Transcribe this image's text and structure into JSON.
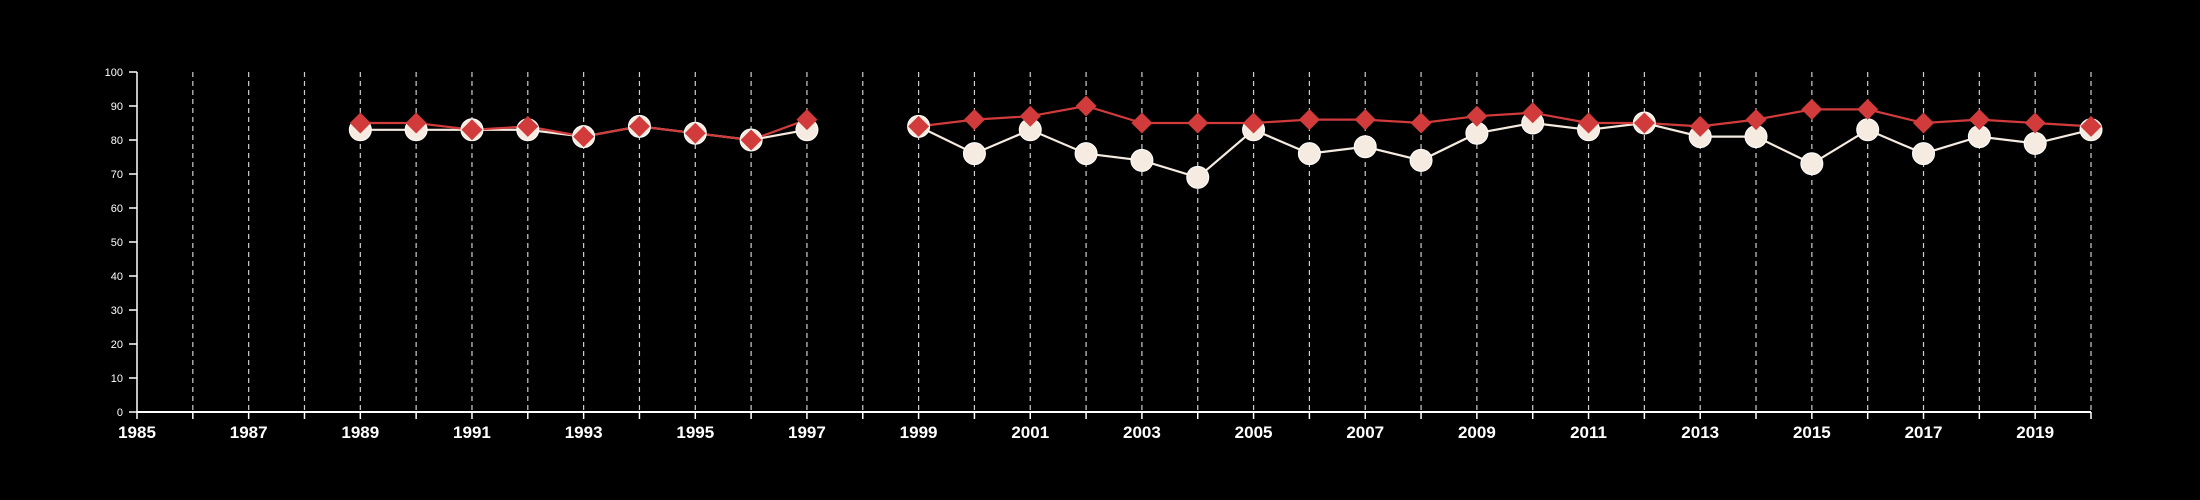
{
  "chart_data": {
    "type": "line",
    "title": "",
    "xlabel": "",
    "ylabel": "",
    "xlim": [
      1985,
      2020
    ],
    "ylim": [
      0,
      100
    ],
    "yticks": [
      0,
      10,
      20,
      30,
      40,
      50,
      60,
      70,
      80,
      90,
      100
    ],
    "xticks": [
      1985,
      1987,
      1989,
      1991,
      1993,
      1995,
      1997,
      1999,
      2001,
      2003,
      2005,
      2007,
      2009,
      2011,
      2013,
      2015,
      2017,
      2019
    ],
    "grid": "vertical dashed lines at every year",
    "legend": "none",
    "background": "#000000",
    "series": [
      {
        "marker": "circle",
        "color": "#f5ebe0",
        "points": [
          [
            1989,
            83
          ],
          [
            1990,
            83
          ],
          [
            1991,
            83
          ],
          [
            1992,
            83
          ],
          [
            1993,
            81
          ],
          [
            1994,
            84
          ],
          [
            1995,
            82
          ],
          [
            1996,
            80
          ],
          [
            1997,
            83
          ],
          [
            1999,
            84
          ],
          [
            2000,
            76
          ],
          [
            2001,
            83
          ],
          [
            2002,
            76
          ],
          [
            2003,
            74
          ],
          [
            2004,
            69
          ],
          [
            2005,
            83
          ],
          [
            2006,
            76
          ],
          [
            2007,
            78
          ],
          [
            2008,
            74
          ],
          [
            2009,
            82
          ],
          [
            2010,
            85
          ],
          [
            2011,
            83
          ],
          [
            2012,
            85
          ],
          [
            2013,
            81
          ],
          [
            2014,
            81
          ],
          [
            2015,
            73
          ],
          [
            2016,
            83
          ],
          [
            2017,
            76
          ],
          [
            2018,
            81
          ],
          [
            2019,
            79
          ],
          [
            2020,
            83
          ]
        ]
      },
      {
        "marker": "diamond",
        "color": "#d13b3b",
        "points": [
          [
            1989,
            85
          ],
          [
            1990,
            85
          ],
          [
            1991,
            83
          ],
          [
            1992,
            84
          ],
          [
            1993,
            81
          ],
          [
            1994,
            84
          ],
          [
            1995,
            82
          ],
          [
            1996,
            80
          ],
          [
            1997,
            86
          ],
          [
            1999,
            84
          ],
          [
            2000,
            86
          ],
          [
            2001,
            87
          ],
          [
            2002,
            90
          ],
          [
            2003,
            85
          ],
          [
            2004,
            85
          ],
          [
            2005,
            85
          ],
          [
            2006,
            86
          ],
          [
            2007,
            86
          ],
          [
            2008,
            85
          ],
          [
            2009,
            87
          ],
          [
            2010,
            88
          ],
          [
            2011,
            85
          ],
          [
            2012,
            85
          ],
          [
            2013,
            84
          ],
          [
            2014,
            86
          ],
          [
            2015,
            89
          ],
          [
            2016,
            89
          ],
          [
            2017,
            85
          ],
          [
            2018,
            86
          ],
          [
            2019,
            85
          ],
          [
            2020,
            84
          ]
        ]
      }
    ]
  }
}
